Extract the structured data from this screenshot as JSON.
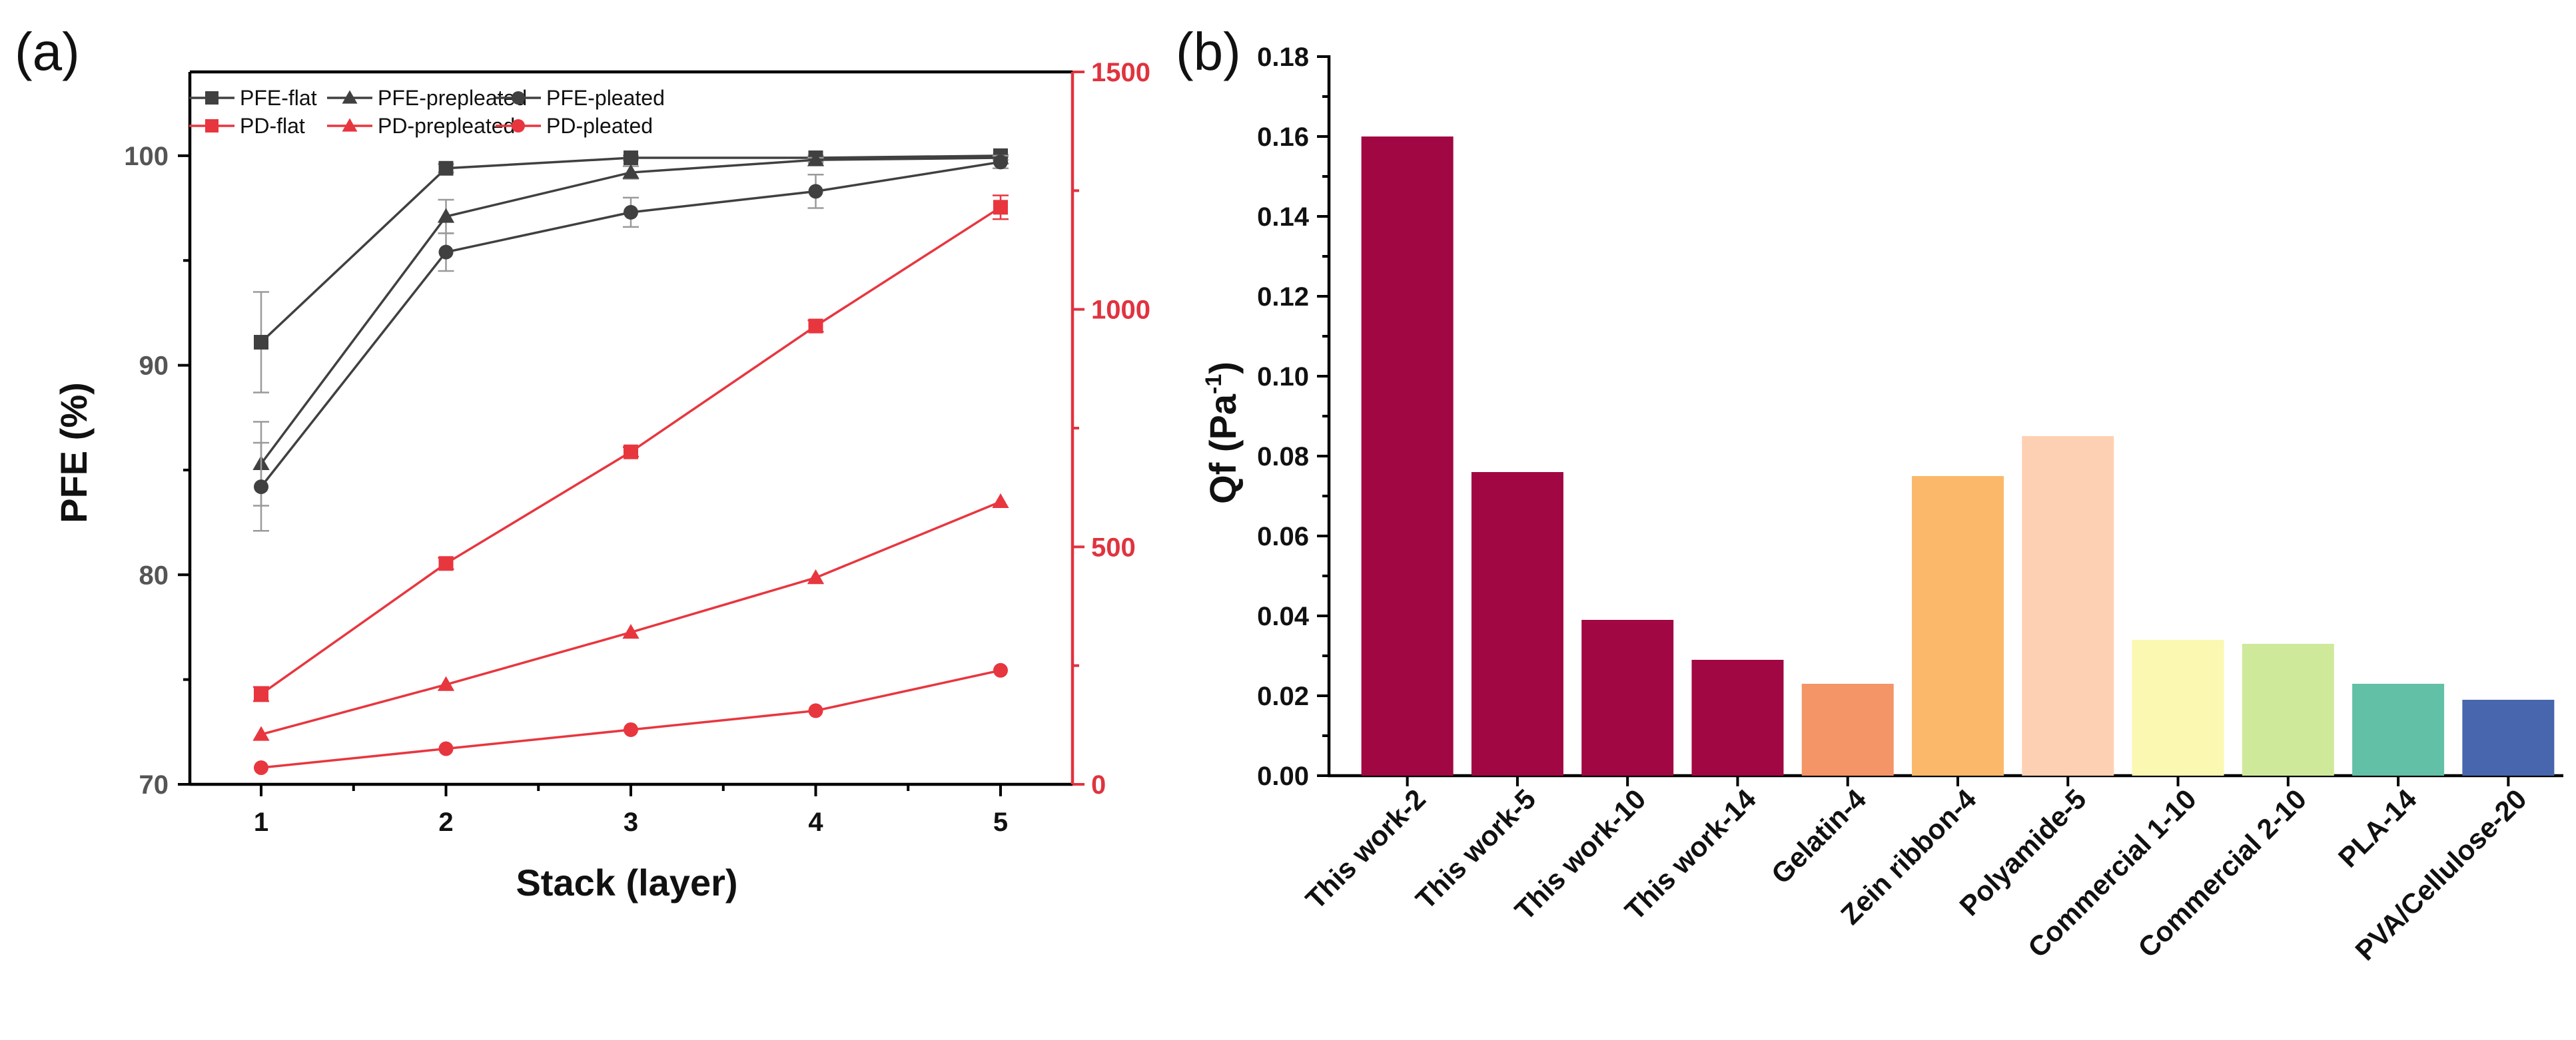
{
  "chart_data": [
    {
      "panel_label": "(a)",
      "type": "line",
      "xlabel": "Stack (layer)",
      "ylabel": "PFE (%)",
      "x": [
        1,
        2,
        3,
        4,
        5
      ],
      "xticks": [
        "1",
        "2",
        "3",
        "4",
        "5"
      ],
      "ylim": [
        70,
        104
      ],
      "yticks": [
        "70",
        "80",
        "90",
        "100"
      ],
      "y2lim": [
        0,
        1500
      ],
      "y2ticks": [
        "0",
        "500",
        "1000",
        "1500"
      ],
      "series": [
        {
          "name": "PFE-flat",
          "axis": "left",
          "marker": "square",
          "color": "#404040",
          "values": [
            91.1,
            99.4,
            99.9,
            99.9,
            100.0
          ],
          "errors": [
            2.4,
            0.2,
            0.1,
            0.1,
            0.05
          ]
        },
        {
          "name": "PFE-prepleated",
          "axis": "left",
          "marker": "triangle",
          "color": "#404040",
          "values": [
            85.3,
            97.1,
            99.2,
            99.8,
            99.9
          ],
          "errors": [
            2.0,
            0.8,
            0.3,
            0.1,
            0.1
          ]
        },
        {
          "name": "PFE-pleated",
          "axis": "left",
          "marker": "circle",
          "color": "#404040",
          "values": [
            84.2,
            95.4,
            97.3,
            98.3,
            99.7
          ],
          "errors": [
            2.1,
            0.9,
            0.7,
            0.8,
            0.3
          ]
        },
        {
          "name": "PD-flat",
          "axis": "right",
          "marker": "square",
          "color": "#e8363f",
          "values": [
            190,
            465,
            700,
            965,
            1215
          ],
          "errors": [
            15,
            12,
            10,
            12,
            25
          ]
        },
        {
          "name": "PD-prepleated",
          "axis": "right",
          "marker": "triangle",
          "color": "#e8363f",
          "values": [
            105,
            210,
            320,
            435,
            595
          ],
          "errors": [
            0,
            0,
            0,
            0,
            0
          ]
        },
        {
          "name": "PD-pleated",
          "axis": "right",
          "marker": "circle",
          "color": "#e8363f",
          "values": [
            35,
            75,
            115,
            155,
            240
          ],
          "errors": [
            0,
            0,
            0,
            0,
            0
          ]
        }
      ],
      "legend": [
        "PFE-flat",
        "PFE-prepleated",
        "PFE-pleated",
        "PD-flat",
        "PD-prepleated",
        "PD-pleated"
      ],
      "legend_position": "top-left"
    },
    {
      "panel_label": "(b)",
      "type": "bar",
      "ylabel": "Qf (Pa",
      "ylabel_sup": "-1",
      "ylabel_close": ")",
      "ylim": [
        0,
        0.18
      ],
      "yticks": [
        "0.00",
        "0.02",
        "0.04",
        "0.06",
        "0.08",
        "0.10",
        "0.12",
        "0.14",
        "0.16",
        "0.18"
      ],
      "categories": [
        "This work-2",
        "This work-5",
        "This work-10",
        "This work-14",
        "Gelatin-4",
        "Zein ribbon-4",
        "Polyamide-5",
        "Commercial 1-10",
        "Commercial 2-10",
        "PLA-14",
        "PVA/Cellulose-20"
      ],
      "values": [
        0.16,
        0.076,
        0.039,
        0.029,
        0.023,
        0.075,
        0.085,
        0.034,
        0.033,
        0.023,
        0.019
      ],
      "colors": [
        "#a10742",
        "#a10742",
        "#a10742",
        "#a10742",
        "#f39566",
        "#fbb86b",
        "#fed0b3",
        "#fbf8b2",
        "#cfe99b",
        "#62c0a6",
        "#4766ad"
      ]
    }
  ]
}
